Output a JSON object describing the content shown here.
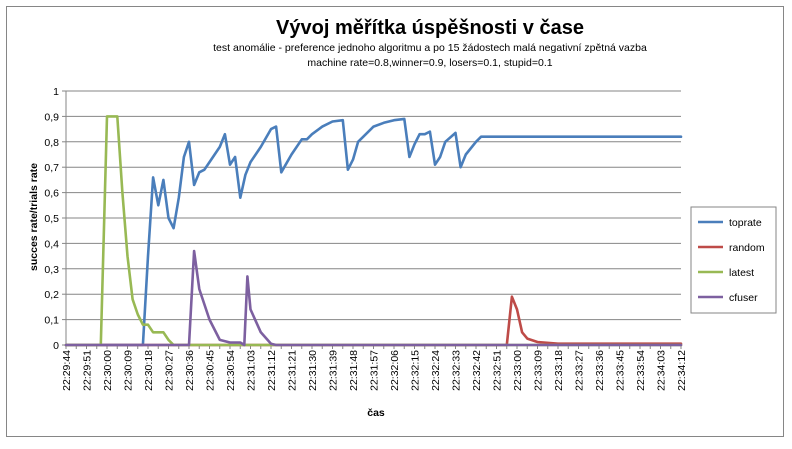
{
  "chart_data": {
    "type": "line",
    "title": "Vývoj měřítka úspěšnosti v čase",
    "subtitle_lines": [
      "test anomálie - preference jednoho  algoritmu a po 15 žádostech malá negativní zpětná vazba",
      "machine rate=0.8,winner=0.9, losers=0.1, stupid=0.1"
    ],
    "xlabel": "čas",
    "ylabel": "succes rate/trials rate",
    "ylim": [
      0,
      1
    ],
    "yticks": [
      "0",
      "0,1",
      "0,2",
      "0,3",
      "0,4",
      "0,5",
      "0,6",
      "0,7",
      "0,8",
      "0,9",
      "1"
    ],
    "xtick_labels": [
      "22:29:44",
      "22:29:51",
      "22:30:00",
      "22:30:09",
      "22:30:18",
      "22:30:27",
      "22:30:36",
      "22:30:45",
      "22:30:54",
      "22:31:03",
      "22:31:12",
      "22:31:21",
      "22:31:30",
      "22:31:39",
      "22:31:48",
      "22:31:57",
      "22:32:06",
      "22:32:15",
      "22:32:24",
      "22:32:33",
      "22:32:42",
      "22:32:51",
      "22:33:00",
      "22:33:09",
      "22:33:18",
      "22:33:27",
      "22:33:36",
      "22:33:45",
      "22:33:54",
      "22:34:03",
      "22:34:12"
    ],
    "n_points": 61,
    "grid": true,
    "legend_position": "right",
    "series": [
      {
        "name": "toprate",
        "color": "#4a7ebb",
        "points": [
          [
            0,
            0
          ],
          [
            7.5,
            0
          ],
          [
            8,
            0.35
          ],
          [
            8.5,
            0.66
          ],
          [
            9,
            0.55
          ],
          [
            9.5,
            0.65
          ],
          [
            10,
            0.5
          ],
          [
            10.5,
            0.46
          ],
          [
            11,
            0.58
          ],
          [
            11.5,
            0.74
          ],
          [
            12,
            0.8
          ],
          [
            12.5,
            0.63
          ],
          [
            13,
            0.68
          ],
          [
            13.5,
            0.69
          ],
          [
            14,
            0.72
          ],
          [
            15,
            0.78
          ],
          [
            15.5,
            0.83
          ],
          [
            16,
            0.71
          ],
          [
            16.5,
            0.74
          ],
          [
            17,
            0.58
          ],
          [
            17.5,
            0.67
          ],
          [
            18,
            0.72
          ],
          [
            19,
            0.78
          ],
          [
            20,
            0.85
          ],
          [
            20.5,
            0.86
          ],
          [
            21,
            0.68
          ],
          [
            22,
            0.75
          ],
          [
            23,
            0.81
          ],
          [
            23.5,
            0.81
          ],
          [
            24,
            0.83
          ],
          [
            25,
            0.86
          ],
          [
            26,
            0.88
          ],
          [
            27,
            0.885
          ],
          [
            27.5,
            0.69
          ],
          [
            28,
            0.73
          ],
          [
            28.5,
            0.8
          ],
          [
            29,
            0.82
          ],
          [
            30,
            0.86
          ],
          [
            31,
            0.875
          ],
          [
            32,
            0.885
          ],
          [
            33,
            0.89
          ],
          [
            33.5,
            0.74
          ],
          [
            34,
            0.79
          ],
          [
            34.5,
            0.83
          ],
          [
            35,
            0.83
          ],
          [
            35.5,
            0.84
          ],
          [
            36,
            0.71
          ],
          [
            36.5,
            0.74
          ],
          [
            37,
            0.8
          ],
          [
            38,
            0.835
          ],
          [
            38.5,
            0.7
          ],
          [
            39,
            0.75
          ],
          [
            40,
            0.8
          ],
          [
            40.5,
            0.82
          ],
          [
            60,
            0.82
          ]
        ]
      },
      {
        "name": "random",
        "color": "#be4b48",
        "points": [
          [
            0,
            0
          ],
          [
            43,
            0
          ],
          [
            43.5,
            0.19
          ],
          [
            44,
            0.14
          ],
          [
            44.5,
            0.05
          ],
          [
            45,
            0.025
          ],
          [
            46,
            0.012
          ],
          [
            48,
            0.005
          ],
          [
            60,
            0.005
          ]
        ]
      },
      {
        "name": "latest",
        "color": "#98b954",
        "points": [
          [
            0,
            0
          ],
          [
            3.4,
            0
          ],
          [
            4,
            0.9
          ],
          [
            5,
            0.9
          ],
          [
            5.5,
            0.6
          ],
          [
            6,
            0.35
          ],
          [
            6.5,
            0.18
          ],
          [
            7,
            0.12
          ],
          [
            7.5,
            0.08
          ],
          [
            8,
            0.08
          ],
          [
            8.5,
            0.05
          ],
          [
            9,
            0.05
          ],
          [
            9.5,
            0.05
          ],
          [
            10,
            0.02
          ],
          [
            10.5,
            0
          ],
          [
            60,
            0
          ]
        ]
      },
      {
        "name": "cfuser",
        "color": "#7d60a0",
        "points": [
          [
            0,
            0
          ],
          [
            12,
            0
          ],
          [
            12.5,
            0.37
          ],
          [
            13,
            0.22
          ],
          [
            14,
            0.1
          ],
          [
            15,
            0.02
          ],
          [
            16,
            0.01
          ],
          [
            17,
            0.01
          ],
          [
            17.4,
            0
          ],
          [
            17.7,
            0.27
          ],
          [
            18,
            0.14
          ],
          [
            19,
            0.05
          ],
          [
            20,
            0.005
          ],
          [
            20.5,
            0
          ],
          [
            60,
            0
          ]
        ]
      }
    ]
  }
}
